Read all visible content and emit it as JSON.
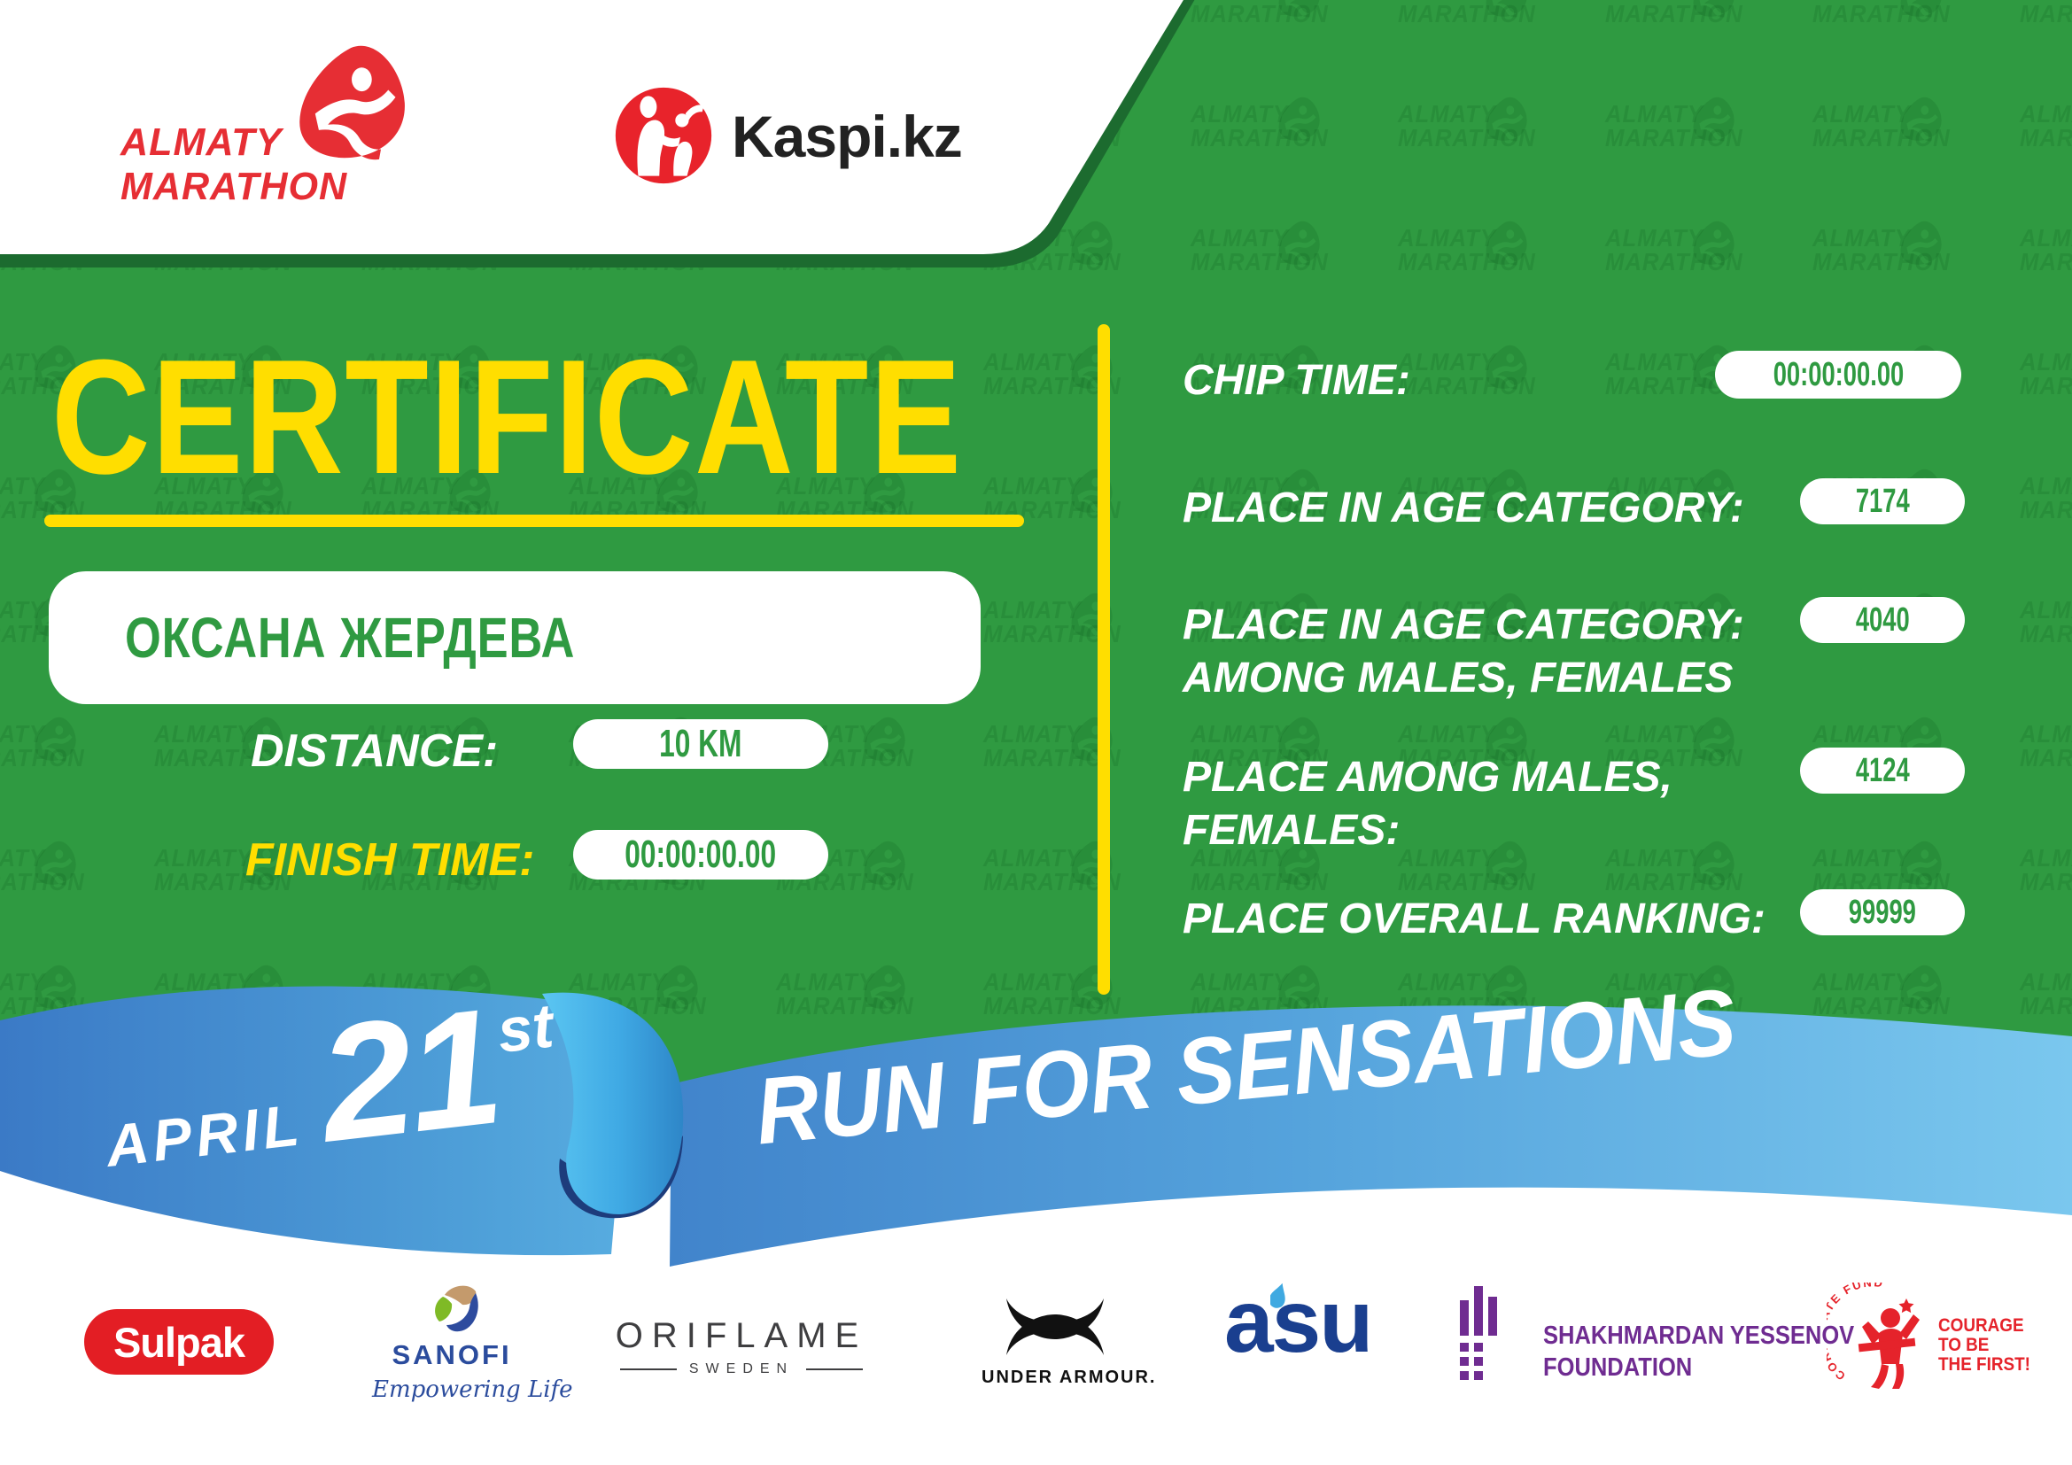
{
  "colors": {
    "green": "#2F9A41",
    "green-dark": "#1C6B2F",
    "yellow": "#FFDE00",
    "red": "#E62E34",
    "kaspi-red": "#E8232B",
    "ribbon-left-1": "#3B7AC6",
    "ribbon-left-2": "#57ACE0",
    "ribbon-right-1": "#4184CB",
    "ribbon-right-2": "#7AC7EE",
    "ribbon-fold-light": "#5BC6F2",
    "ribbon-fold-dark": "#1D3C7C",
    "sulpak-red": "#E31E24",
    "sanofi-blue": "#2B4C9D",
    "sanofi-tan": "#C49A6C",
    "sanofi-green": "#7FBA26",
    "oriflame-gray": "#3E3E40",
    "ua-black": "#111111",
    "asu-navy": "#1A3F8F",
    "asu-blue": "#3FA9E1",
    "yessenov-purple": "#6F2C91",
    "courage-red": "#E5232B"
  },
  "header": {
    "almaty_line1": "ALMATY",
    "almaty_line2": "MARATHON",
    "kaspi": "Kaspi.kz"
  },
  "certificate": {
    "title": "CERTIFICATE",
    "name": "ОКСАНА ЖЕРДЕВА"
  },
  "fields": {
    "distance_label": "DISTANCE:",
    "distance_value": "10 KM",
    "finish_label": "FINISH TIME:",
    "finish_value": "00:00:00.00"
  },
  "results": [
    {
      "label1": "CHIP TIME:",
      "label2": "",
      "value": "00:00:00.00"
    },
    {
      "label1": "PLACE IN AGE CATEGORY:",
      "label2": "",
      "value": "7174"
    },
    {
      "label1": "PLACE IN AGE CATEGORY:",
      "label2": "AMONG MALES, FEMALES",
      "value": "4040"
    },
    {
      "label1": "PLACE AMONG MALES,",
      "label2": "FEMALES:",
      "value": "4124"
    },
    {
      "label1": "PLACE OVERALL RANKING:",
      "label2": "",
      "value": "99999"
    }
  ],
  "ribbon": {
    "date_word": "APRIL",
    "date_number": "21",
    "date_suffix": "st",
    "slogan": "RUN FOR SENSATIONS"
  },
  "sponsors": {
    "sulpak": "Sulpak",
    "sanofi_name": "SANOFI",
    "sanofi_tagline": "Empowering Life",
    "oriflame_name": "ORIFLAME",
    "oriflame_sub": "SWEDEN",
    "under_armour": "UNDER ARMOUR.",
    "asu": "asu",
    "yessenov_line1": "SHAKHMARDAN YESSENOV",
    "yessenov_line2": "FOUNDATION",
    "courage_arc": "CORPORATE FUND",
    "courage_line1": "COURAGE",
    "courage_line2": "TO BE",
    "courage_line3": "THE FIRST!"
  },
  "watermark": {
    "line1": "ALMATY",
    "line2": "MARATHON"
  }
}
